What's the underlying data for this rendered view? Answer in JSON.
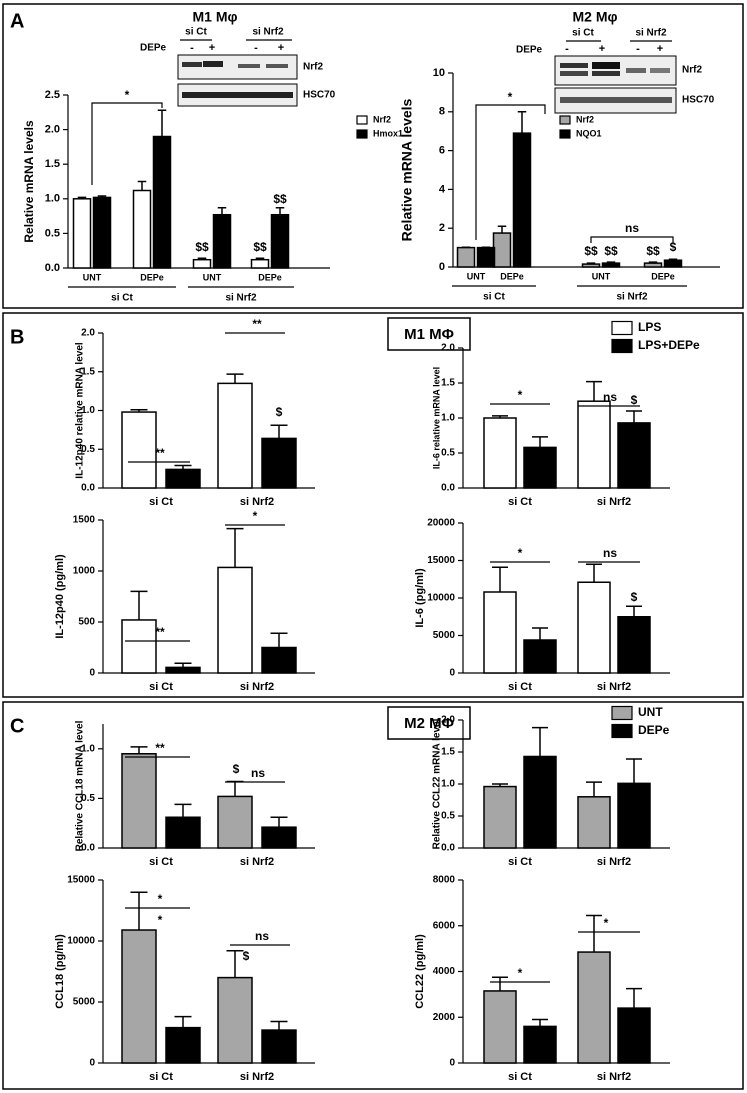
{
  "panels": [
    {
      "letter": "A"
    },
    {
      "letter": "B",
      "title": "M1 MΦ"
    },
    {
      "letter": "C",
      "title": "M2 MΦ"
    }
  ],
  "blots": [
    {
      "title": "M1 Mφ",
      "groups": [
        "si Ct",
        "si Nrf2"
      ],
      "treatment": "DEPe",
      "signs": [
        "-",
        "+",
        "-",
        "+"
      ],
      "bands": [
        "Nrf2",
        "HSC70"
      ]
    },
    {
      "title": "M2 Mφ",
      "groups": [
        "si Ct",
        "si Nrf2"
      ],
      "treatment": "DEPe",
      "signs": [
        "-",
        "+",
        "-",
        "+"
      ],
      "bands": [
        "Nrf2",
        "HSC70"
      ]
    }
  ],
  "chart_data": [
    {
      "type": "bar",
      "ylabel": "Relative mRNA levels",
      "ylim": [
        0,
        2.5
      ],
      "yticks": [
        {
          "value": 0,
          "label": "0.0"
        },
        0.5,
        {
          "value": 1,
          "label": "1.0"
        },
        1.5,
        {
          "value": 2,
          "label": "2.0"
        },
        2.5
      ],
      "categories": [
        "UNT",
        "DEPe",
        "UNT",
        "DEPe"
      ],
      "groups": [
        "si Ct",
        "si Nrf2"
      ],
      "series": [
        {
          "name": "Nrf2",
          "color": "#ffffff",
          "values": [
            1.0,
            1.12,
            0.12,
            0.12
          ],
          "errors": [
            0.02,
            0.13,
            0.02,
            0.02
          ]
        },
        {
          "name": "Hmox1",
          "color": "#000000",
          "values": [
            1.02,
            1.9,
            0.77,
            0.77
          ],
          "errors": [
            0.02,
            0.38,
            0.1,
            0.1
          ]
        }
      ],
      "annotations": [
        "*",
        "$$",
        "$$",
        "$$"
      ]
    },
    {
      "type": "bar",
      "ylabel": "Relative mRNA levels",
      "ylim": [
        0,
        10
      ],
      "yticks": [
        0,
        2,
        4,
        6,
        8,
        10
      ],
      "categories": [
        "UNT",
        "DEPe",
        "UNT",
        "DEPe"
      ],
      "groups": [
        "si Ct",
        "si Nrf2"
      ],
      "series": [
        {
          "name": "Nrf2",
          "color": "#a6a6a6",
          "values": [
            1.0,
            1.75,
            0.15,
            0.2
          ],
          "errors": [
            0.02,
            0.35,
            0.05,
            0.05
          ]
        },
        {
          "name": "NQO1",
          "color": "#000000",
          "values": [
            1.0,
            6.9,
            0.2,
            0.35
          ],
          "errors": [
            0.02,
            1.1,
            0.05,
            0.05
          ]
        }
      ],
      "annotations": [
        "*",
        "ns",
        "$$",
        "$$",
        "$$",
        "$"
      ]
    },
    {
      "type": "bar",
      "ylabel": "IL-12p40 relative mRNA level",
      "ylim": [
        0,
        2
      ],
      "yticks": [
        {
          "value": 0,
          "label": "0.0"
        },
        0.5,
        {
          "value": 1,
          "label": "1.0"
        },
        1.5,
        {
          "value": 2,
          "label": "2.0"
        }
      ],
      "categories": [
        "si Ct",
        "si Nrf2"
      ],
      "series": [
        {
          "name": "LPS",
          "color": "#ffffff",
          "values": [
            0.98,
            1.35
          ],
          "errors": [
            0.03,
            0.12
          ]
        },
        {
          "name": "LPS+DEPe",
          "color": "#000000",
          "values": [
            0.24,
            0.64
          ],
          "errors": [
            0.05,
            0.17
          ]
        }
      ],
      "annotations": [
        "**",
        "**",
        "$"
      ]
    },
    {
      "type": "bar",
      "ylabel": "IL-6 relative mRNA level",
      "ylim": [
        0,
        2
      ],
      "yticks": [
        {
          "value": 0,
          "label": "0.0"
        },
        0.5,
        {
          "value": 1,
          "label": "1.0"
        },
        1.5,
        {
          "value": 2,
          "label": "2.0"
        }
      ],
      "categories": [
        "si Ct",
        "si Nrf2"
      ],
      "series": [
        {
          "color": "#ffffff",
          "values": [
            1.0,
            1.24
          ],
          "errors": [
            0.03,
            0.28
          ]
        },
        {
          "color": "#000000",
          "values": [
            0.58,
            0.93
          ],
          "errors": [
            0.15,
            0.17
          ]
        }
      ],
      "annotations": [
        "*",
        "ns",
        "$"
      ]
    },
    {
      "type": "bar",
      "ylabel": "IL-12p40 (pg/ml)",
      "ylim": [
        0,
        1500
      ],
      "yticks": [
        0,
        500,
        1000,
        1500
      ],
      "categories": [
        "si Ct",
        "si Nrf2"
      ],
      "series": [
        {
          "color": "#ffffff",
          "values": [
            520,
            1035
          ],
          "errors": [
            280,
            380
          ]
        },
        {
          "color": "#000000",
          "values": [
            55,
            250
          ],
          "errors": [
            40,
            140
          ]
        }
      ],
      "annotations": [
        "**",
        "*"
      ]
    },
    {
      "type": "bar",
      "ylabel": "IL-6 (pg/ml)",
      "ylim": [
        0,
        20000
      ],
      "yticks": [
        0,
        5000,
        10000,
        15000,
        20000
      ],
      "categories": [
        "si Ct",
        "si Nrf2"
      ],
      "series": [
        {
          "color": "#ffffff",
          "values": [
            10800,
            12100
          ],
          "errors": [
            3300,
            2400
          ]
        },
        {
          "color": "#000000",
          "values": [
            4400,
            7500
          ],
          "errors": [
            1600,
            1400
          ]
        }
      ],
      "annotations": [
        "*",
        "ns",
        "$"
      ]
    },
    {
      "type": "bar",
      "ylabel": "Relative CCL18 mRNA level",
      "ylim": [
        0,
        1.25
      ],
      "yticks": [
        {
          "value": 0,
          "label": "0.0"
        },
        0.5,
        {
          "value": 1,
          "label": "1.0"
        }
      ],
      "categories": [
        "si Ct",
        "si Nrf2"
      ],
      "series": [
        {
          "name": "UNT",
          "color": "#a6a6a6",
          "values": [
            0.95,
            0.52
          ],
          "errors": [
            0.07,
            0.15
          ]
        },
        {
          "name": "DEPe",
          "color": "#000000",
          "values": [
            0.31,
            0.21
          ],
          "errors": [
            0.13,
            0.1
          ]
        }
      ],
      "annotations": [
        "**",
        "ns",
        "$"
      ]
    },
    {
      "type": "bar",
      "ylabel": "Relative CCL22 mRNA level",
      "ylim": [
        0,
        2
      ],
      "yticks": [
        {
          "value": 0,
          "label": "0.0"
        },
        0.5,
        {
          "value": 1,
          "label": "1.0"
        },
        1.5,
        {
          "value": 2,
          "label": "2.0"
        }
      ],
      "categories": [
        "si Ct",
        "si Nrf2"
      ],
      "series": [
        {
          "color": "#a6a6a6",
          "values": [
            0.96,
            0.8
          ],
          "errors": [
            0.04,
            0.23
          ]
        },
        {
          "color": "#000000",
          "values": [
            1.43,
            1.01
          ],
          "errors": [
            0.45,
            0.38
          ]
        }
      ],
      "annotations": []
    },
    {
      "type": "bar",
      "ylabel": "CCL18 (pg/ml)",
      "ylim": [
        0,
        15000
      ],
      "yticks": [
        0,
        5000,
        10000,
        15000
      ],
      "categories": [
        "si Ct",
        "si Nrf2"
      ],
      "series": [
        {
          "color": "#a6a6a6",
          "values": [
            10900,
            7000
          ],
          "errors": [
            3100,
            2200
          ]
        },
        {
          "color": "#000000",
          "values": [
            2900,
            2700
          ],
          "errors": [
            900,
            700
          ]
        }
      ],
      "annotations": [
        "*",
        "*",
        "ns",
        "$"
      ]
    },
    {
      "type": "bar",
      "ylabel": "CCL22 (pg/ml)",
      "ylim": [
        0,
        8000
      ],
      "yticks": [
        0,
        2000,
        4000,
        6000,
        8000
      ],
      "categories": [
        "si Ct",
        "si Nrf2"
      ],
      "series": [
        {
          "color": "#a6a6a6",
          "values": [
            3150,
            4850
          ],
          "errors": [
            600,
            1600
          ]
        },
        {
          "color": "#000000",
          "values": [
            1600,
            2400
          ],
          "errors": [
            300,
            850
          ]
        }
      ],
      "annotations": [
        "*",
        "*"
      ]
    }
  ]
}
